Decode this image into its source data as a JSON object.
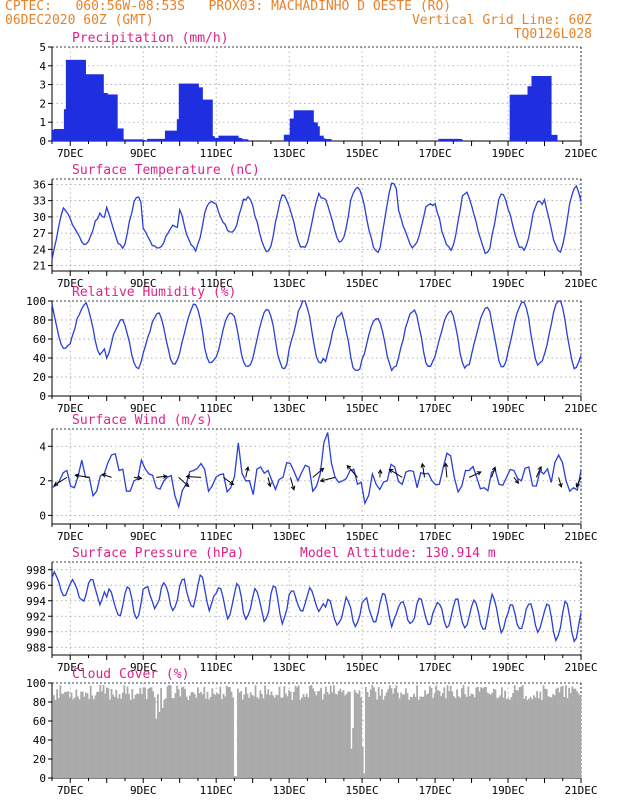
{
  "header": {
    "line1_left": "CPTEC:   060:56W-08:53S   PROX03: MACHADINHO D OESTE (RO)",
    "line2_left": "06DEC2020 60Z (GMT)",
    "line2_right": "Vertical Grid Line: 60Z",
    "line3_right": "TQ0126L028"
  },
  "colors": {
    "header": "#e8822a",
    "title": "#e0218a",
    "series": "#2a3fd6",
    "bar": "#1f2fe0",
    "cloud": "#aaaaaa",
    "grid": "#999999"
  },
  "chart_data": [
    {
      "type": "bar",
      "title": "Precipitation (mm/h)",
      "x_range": [
        "06DEC2020 12Z",
        "21DEC2020 00Z"
      ],
      "x_ticks": [
        "7DEC",
        "9DEC",
        "11DEC",
        "13DEC",
        "15DEC",
        "17DEC",
        "19DEC",
        "21DEC"
      ],
      "ylim": [
        0,
        5
      ],
      "y_ticks": [
        "0",
        "1",
        "2",
        "3",
        "4",
        "5"
      ],
      "grid": true,
      "values_sampled_6h": [
        0.8,
        0.7,
        4.1,
        0.3,
        0.2,
        4.0,
        3.2,
        2.2,
        0.6,
        0.1,
        0,
        0,
        0.1,
        0,
        0,
        0,
        0.1,
        0,
        0,
        0.7,
        0.2,
        2.8,
        2.7,
        2.3,
        0.3,
        0,
        0,
        0,
        0.4,
        0.1,
        0,
        0,
        0,
        0,
        0,
        0,
        0,
        0,
        0,
        0.3,
        1.6,
        1.4,
        0.3,
        0.1,
        0,
        0,
        0,
        0,
        0,
        0,
        0,
        0,
        0,
        0,
        0,
        0,
        0,
        0,
        0,
        0,
        0,
        0,
        0,
        0,
        0,
        0.1,
        0,
        0,
        0,
        0,
        0,
        0,
        0,
        0,
        0,
        0,
        0,
        2.6,
        2.5,
        1.7,
        3.1,
        0.4,
        0,
        0,
        0,
        0,
        0,
        0,
        0
      ]
    },
    {
      "type": "line",
      "title": "Surface Temperature (nC)",
      "x_ticks": [
        "7DEC",
        "9DEC",
        "11DEC",
        "13DEC",
        "15DEC",
        "17DEC",
        "19DEC",
        "21DEC"
      ],
      "ylim": [
        20,
        37
      ],
      "y_ticks": [
        "21",
        "24",
        "27",
        "30",
        "33",
        "36"
      ],
      "grid": true,
      "daily_min_max": [
        [
          21,
          31.5
        ],
        [
          25,
          30.5
        ],
        [
          24.5,
          33.5
        ],
        [
          24,
          28.5
        ],
        [
          24,
          33
        ],
        [
          27,
          33.5
        ],
        [
          23.5,
          34
        ],
        [
          24,
          34
        ],
        [
          25.5,
          35.5
        ],
        [
          23.5,
          36
        ],
        [
          24.5,
          32.5
        ],
        [
          24,
          34.5
        ],
        [
          23.5,
          34
        ],
        [
          24,
          33
        ],
        [
          23.5,
          35.5
        ]
      ]
    },
    {
      "type": "line",
      "title": "Relative Humidity (%)",
      "x_ticks": [
        "7DEC",
        "9DEC",
        "11DEC",
        "13DEC",
        "15DEC",
        "17DEC",
        "19DEC",
        "21DEC"
      ],
      "ylim": [
        0,
        100
      ],
      "y_ticks": [
        "0",
        "20",
        "40",
        "60",
        "80",
        "100"
      ],
      "grid": true,
      "daily_min_max": [
        [
          50,
          100
        ],
        [
          45,
          97
        ],
        [
          30,
          80
        ],
        [
          33,
          88
        ],
        [
          35,
          97
        ],
        [
          30,
          88
        ],
        [
          28,
          92
        ],
        [
          35,
          100
        ],
        [
          25,
          87
        ],
        [
          28,
          82
        ],
        [
          30,
          90
        ],
        [
          30,
          88
        ],
        [
          32,
          93
        ],
        [
          33,
          100
        ],
        [
          30,
          100
        ]
      ]
    },
    {
      "type": "line",
      "title": "Surface Wind (m/s)",
      "x_ticks": [
        "7DEC",
        "9DEC",
        "11DEC",
        "13DEC",
        "15DEC",
        "17DEC",
        "19DEC",
        "21DEC"
      ],
      "ylim": [
        -0.5,
        5
      ],
      "y_ticks": [
        "0",
        "2",
        "4"
      ],
      "grid": true,
      "direction_arrows": true,
      "values_sampled_6h": [
        1.6,
        2.0,
        2.6,
        1.6,
        3.2,
        2.2,
        1.4,
        2.4,
        3.5,
        2.6,
        1.4,
        2.0,
        3.2,
        2.4,
        1.6,
        2.0,
        2.3,
        0.5,
        1.8,
        2.6,
        3.0,
        1.4,
        2.2,
        2.4,
        1.6,
        4.2,
        2.0,
        1.2,
        2.8,
        2.6,
        1.5,
        2.2,
        3.0,
        2.0,
        2.9,
        1.4,
        2.4,
        4.8,
        2.2,
        2.0,
        2.6,
        1.8,
        0.7,
        2.4,
        1.5,
        2.0,
        2.8,
        1.8,
        2.6,
        1.6,
        2.4,
        2.0,
        1.8,
        3.6,
        2.2,
        1.7,
        2.6,
        2.2,
        1.6,
        2.5,
        1.8,
        2.2,
        2.6,
        2.0,
        2.8,
        1.7,
        2.4,
        1.9,
        3.5,
        2.0,
        1.6,
        2.6
      ]
    },
    {
      "type": "line",
      "title": "Surface Pressure (hPa)",
      "annotation": "Model Altitude: 130.914 m",
      "x_ticks": [
        "7DEC",
        "9DEC",
        "11DEC",
        "13DEC",
        "15DEC",
        "17DEC",
        "19DEC",
        "21DEC"
      ],
      "ylim": [
        987,
        999
      ],
      "y_ticks": [
        "988",
        "990",
        "992",
        "994",
        "996",
        "998"
      ],
      "grid": true,
      "daily_min_max": [
        [
          994,
          998
        ],
        [
          993,
          997.5
        ],
        [
          991,
          996.5
        ],
        [
          992,
          997
        ],
        [
          992,
          998
        ],
        [
          990.5,
          997
        ],
        [
          990,
          997
        ],
        [
          992,
          996
        ],
        [
          990,
          995
        ],
        [
          990,
          995.5
        ],
        [
          990,
          995
        ],
        [
          989.5,
          995
        ],
        [
          989,
          995.5
        ],
        [
          989,
          994.5
        ],
        [
          987.5,
          995
        ]
      ]
    },
    {
      "type": "bar",
      "title": "Cloud Cover (%)",
      "x_ticks": [
        "7DEC",
        "9DEC",
        "11DEC",
        "13DEC",
        "15DEC",
        "17DEC",
        "19DEC",
        "21DEC"
      ],
      "ylim": [
        0,
        100
      ],
      "y_ticks": [
        "0",
        "20",
        "40",
        "60",
        "80",
        "100"
      ],
      "grid": true,
      "typical_range": [
        82,
        98
      ],
      "notable_dips": {
        "11DEC 12Z": 2,
        "15DEC 00Z": 5
      }
    }
  ]
}
